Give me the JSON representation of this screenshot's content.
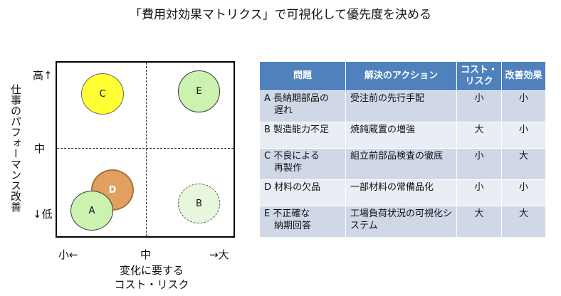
{
  "title": "「費用対効果マトリクス」で可視化して優先度を決める",
  "matrix": {
    "y_label": "仕事のパフォーマンス改善",
    "y_high": "高↑",
    "y_mid": "中",
    "y_low": "↓低",
    "x_low": "小←",
    "x_mid": "中",
    "x_high": "→大",
    "x_label_1": "変化に要する",
    "x_label_2": "コスト・リスク",
    "circles": [
      {
        "label": "C",
        "fill": "#ffff33",
        "border": "solid"
      },
      {
        "label": "E",
        "fill": "#ccf2b0",
        "border": "solid"
      },
      {
        "label": "D",
        "fill": "#e0a060",
        "border": "solid"
      },
      {
        "label": "A",
        "fill": "#ccf2b0",
        "border": "solid"
      },
      {
        "label": "B",
        "fill": "#e6f7dd",
        "border": "dashed"
      }
    ]
  },
  "table": {
    "headers": [
      "問題",
      "解決のアクション",
      "コスト・リスク",
      "改善効果"
    ],
    "rows": [
      {
        "problem_1": "A 長納期部品の",
        "problem_2": "遅れ",
        "action": "受注前の先行手配",
        "cost": "小",
        "effect": "小"
      },
      {
        "problem_1": "B 製造能力不足",
        "problem_2": "",
        "action": "焼鈍蔵置の増強",
        "cost": "大",
        "effect": "小"
      },
      {
        "problem_1": "C 不良による",
        "problem_2": "再製作",
        "action": "組立前部品検査の徹底",
        "cost": "小",
        "effect": "大"
      },
      {
        "problem_1": "D 材料の欠品",
        "problem_2": "",
        "action": "一部材料の常備品化",
        "cost": "小",
        "effect": "小"
      },
      {
        "problem_1": "E 不正確な",
        "problem_2": "納期回答",
        "action": "工場負荷状況の可視化システム",
        "cost": "大",
        "effect": "大"
      }
    ]
  }
}
